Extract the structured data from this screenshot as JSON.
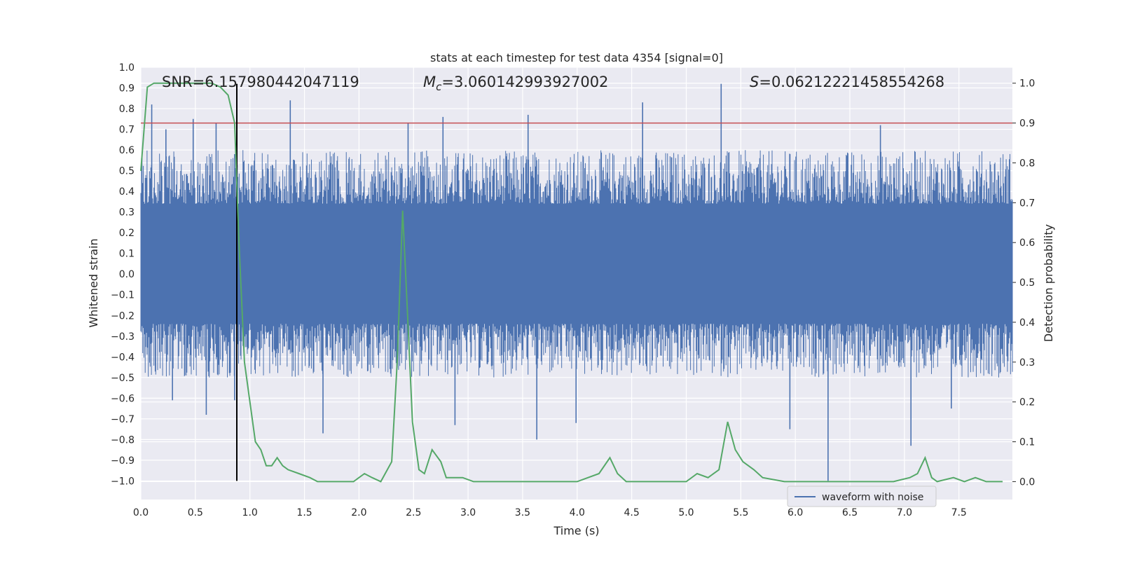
{
  "chart_data": {
    "type": "line",
    "title": "stats at each timestep for test data 4354 [signal=0]",
    "xlabel": "Time (s)",
    "ylabel": "Whitened strain",
    "ylabel_right": "Detection probability",
    "xlim": [
      0.0,
      7.99
    ],
    "ylim": [
      -1.09,
      1.0
    ],
    "ylim_right": [
      -0.045,
      1.04
    ],
    "xticks": [
      "0.0",
      "0.5",
      "1.0",
      "1.5",
      "2.0",
      "2.5",
      "3.0",
      "3.5",
      "4.0",
      "4.5",
      "5.0",
      "5.5",
      "6.0",
      "6.5",
      "7.0",
      "7.5"
    ],
    "yticks": [
      "1.0",
      "0.9",
      "0.8",
      "0.7",
      "0.6",
      "0.5",
      "0.4",
      "0.3",
      "0.2",
      "0.1",
      "0.0",
      "-0.1",
      "-0.2",
      "-0.3",
      "-0.4",
      "-0.5",
      "-0.6",
      "-0.7",
      "-0.8",
      "-0.9",
      "-1.0"
    ],
    "yticks_right": [
      "1.0",
      "0.9",
      "0.8",
      "0.7",
      "0.6",
      "0.5",
      "0.4",
      "0.3",
      "0.2",
      "0.1",
      "0.0"
    ],
    "annotations": {
      "snr": "SNR=6.157980442047119",
      "mc_symbol": "M",
      "mc_sub": "c",
      "mc_value": "=3.060142993927002",
      "s_symbol": "S",
      "s_value": "=0.06212221458554268"
    },
    "legend": {
      "label": "waveform with noise",
      "placement": "lower-right"
    },
    "threshold_line": {
      "y_right": 0.9,
      "color": "#c44e52"
    },
    "marker_line": {
      "x": 0.88,
      "y_from": -1.0,
      "y_to": 0.92,
      "color": "#000000"
    },
    "waveform": {
      "name": "waveform with noise",
      "color": "#4c72b0",
      "x_range": [
        0.0,
        7.99
      ],
      "dense_band": [
        -0.24,
        0.34
      ],
      "typical_extent": [
        -0.5,
        0.6
      ],
      "peaks": [
        {
          "x": 0.1,
          "y": 0.82
        },
        {
          "x": 0.23,
          "y": 0.7
        },
        {
          "x": 0.48,
          "y": 0.75
        },
        {
          "x": 0.69,
          "y": 0.73
        },
        {
          "x": 0.86,
          "y": 0.58
        },
        {
          "x": 1.37,
          "y": 0.84
        },
        {
          "x": 2.45,
          "y": 0.73
        },
        {
          "x": 2.77,
          "y": 0.76
        },
        {
          "x": 3.55,
          "y": 0.77
        },
        {
          "x": 4.6,
          "y": 0.83
        },
        {
          "x": 5.32,
          "y": 0.92
        },
        {
          "x": 6.78,
          "y": 0.72
        },
        {
          "x": 0.29,
          "y": -0.61
        },
        {
          "x": 0.6,
          "y": -0.68
        },
        {
          "x": 0.86,
          "y": -0.61
        },
        {
          "x": 1.67,
          "y": -0.77
        },
        {
          "x": 2.88,
          "y": -0.73
        },
        {
          "x": 3.63,
          "y": -0.8
        },
        {
          "x": 3.99,
          "y": -0.72
        },
        {
          "x": 5.95,
          "y": -0.75
        },
        {
          "x": 6.3,
          "y": -1.0
        },
        {
          "x": 7.06,
          "y": -0.83
        },
        {
          "x": 7.43,
          "y": -0.65
        }
      ]
    },
    "probability": {
      "name": "detection probability",
      "color": "#55a868",
      "x": [
        0.0,
        0.06,
        0.12,
        0.25,
        0.5,
        0.65,
        0.73,
        0.8,
        0.86,
        0.9,
        0.95,
        1.0,
        1.05,
        1.1,
        1.15,
        1.2,
        1.25,
        1.3,
        1.35,
        1.45,
        1.55,
        1.62,
        1.7,
        1.8,
        1.95,
        2.05,
        2.12,
        2.2,
        2.3,
        2.35,
        2.4,
        2.44,
        2.49,
        2.55,
        2.6,
        2.67,
        2.75,
        2.8,
        2.85,
        2.95,
        3.05,
        3.15,
        3.3,
        3.5,
        3.8,
        4.0,
        4.1,
        4.2,
        4.3,
        4.37,
        4.45,
        4.6,
        4.75,
        5.0,
        5.1,
        5.2,
        5.3,
        5.38,
        5.45,
        5.52,
        5.62,
        5.7,
        5.9,
        6.1,
        6.3,
        6.5,
        6.9,
        7.05,
        7.12,
        7.19,
        7.25,
        7.3,
        7.45,
        7.55,
        7.65,
        7.75,
        7.9
      ],
      "y": [
        0.78,
        0.99,
        1.0,
        1.0,
        1.0,
        1.0,
        0.99,
        0.97,
        0.9,
        0.6,
        0.3,
        0.2,
        0.1,
        0.08,
        0.04,
        0.04,
        0.06,
        0.04,
        0.03,
        0.02,
        0.01,
        0.0,
        0.0,
        0.0,
        0.0,
        0.02,
        0.01,
        0.0,
        0.05,
        0.3,
        0.68,
        0.45,
        0.15,
        0.03,
        0.02,
        0.08,
        0.05,
        0.01,
        0.01,
        0.01,
        0.0,
        0.0,
        0.0,
        0.0,
        0.0,
        0.0,
        0.01,
        0.02,
        0.06,
        0.02,
        0.0,
        0.0,
        0.0,
        0.0,
        0.02,
        0.01,
        0.03,
        0.15,
        0.08,
        0.05,
        0.03,
        0.01,
        0.0,
        0.0,
        0.0,
        0.0,
        0.0,
        0.01,
        0.02,
        0.06,
        0.01,
        0.0,
        0.01,
        0.0,
        0.01,
        0.0,
        0.0
      ]
    }
  }
}
